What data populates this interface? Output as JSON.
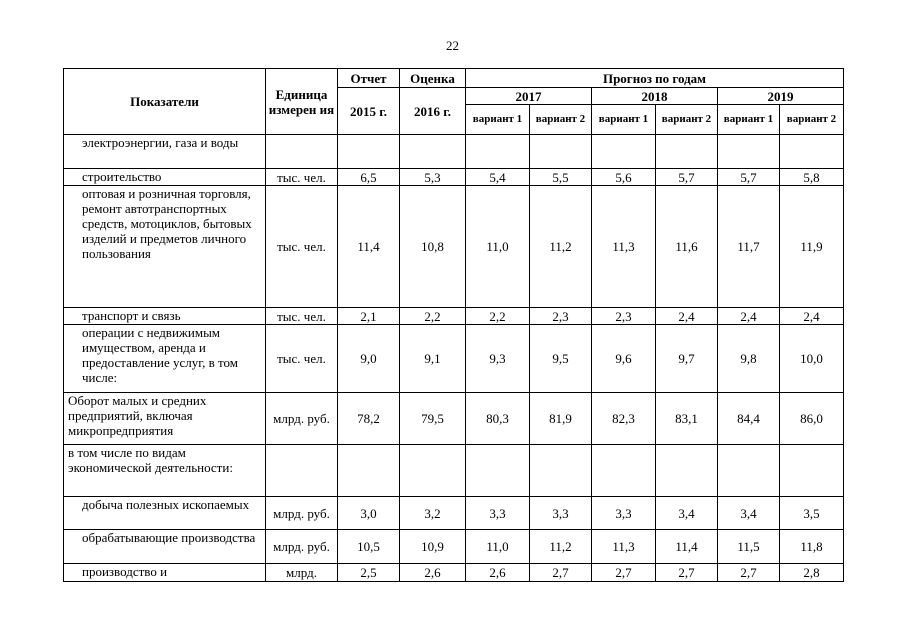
{
  "page_number": "22",
  "header": {
    "indicator": "Показатели",
    "unit": "Единица измерен ия",
    "report": "Отчет",
    "report_year": "2015 г.",
    "estimate": "Оценка",
    "estimate_year": "2016 г.",
    "forecast": "Прогноз по годам",
    "years": [
      "2017",
      "2018",
      "2019"
    ],
    "variant1": "вариант 1",
    "variant2": "вариант 2"
  },
  "rows": [
    {
      "label": "электроэнергии, газа и воды",
      "unit": "",
      "values": [
        "",
        "",
        "",
        "",
        "",
        "",
        "",
        ""
      ],
      "indent": true
    },
    {
      "label": "строительство",
      "unit": "тыс. чел.",
      "values": [
        "6,5",
        "5,3",
        "5,4",
        "5,5",
        "5,6",
        "5,7",
        "5,7",
        "5,8"
      ],
      "indent": true
    },
    {
      "label": "оптовая и розничная торговля, ремонт автотранспортных средств, мотоциклов, бытовых изделий и предметов личного пользования",
      "unit": "тыс. чел.",
      "values": [
        "11,4",
        "10,8",
        "11,0",
        "11,2",
        "11,3",
        "11,6",
        "11,7",
        "11,9"
      ],
      "indent": true
    },
    {
      "label": "транспорт и связь",
      "unit": "тыс. чел.",
      "values": [
        "2,1",
        "2,2",
        "2,2",
        "2,3",
        "2,3",
        "2,4",
        "2,4",
        "2,4"
      ],
      "indent": true
    },
    {
      "label": "операции с недвижимым имуществом, аренда и предоставление услуг, в том числе:",
      "unit": "тыс. чел.",
      "values": [
        "9,0",
        "9,1",
        "9,3",
        "9,5",
        "9,6",
        "9,7",
        "9,8",
        "10,0"
      ],
      "indent": true
    },
    {
      "label": "Оборот малых и средних предприятий, включая микропредприятия",
      "unit": "млрд. руб.",
      "values": [
        "78,2",
        "79,5",
        "80,3",
        "81,9",
        "82,3",
        "83,1",
        "84,4",
        "86,0"
      ],
      "indent": false
    },
    {
      "label": "в том числе по видам экономической деятельности:",
      "unit": "",
      "values": [
        "",
        "",
        "",
        "",
        "",
        "",
        "",
        ""
      ],
      "indent": false
    },
    {
      "label": "добыча полезных ископаемых",
      "unit": "млрд. руб.",
      "values": [
        "3,0",
        "3,2",
        "3,3",
        "3,3",
        "3,3",
        "3,4",
        "3,4",
        "3,5"
      ],
      "indent": true
    },
    {
      "label": "обрабатывающие производства",
      "unit": "млрд. руб.",
      "values": [
        "10,5",
        "10,9",
        "11,0",
        "11,2",
        "11,3",
        "11,4",
        "11,5",
        "11,8"
      ],
      "indent": true
    },
    {
      "label": "производство и",
      "unit": "млрд.",
      "values": [
        "2,5",
        "2,6",
        "2,6",
        "2,7",
        "2,7",
        "2,7",
        "2,7",
        "2,8"
      ],
      "indent": true
    }
  ]
}
